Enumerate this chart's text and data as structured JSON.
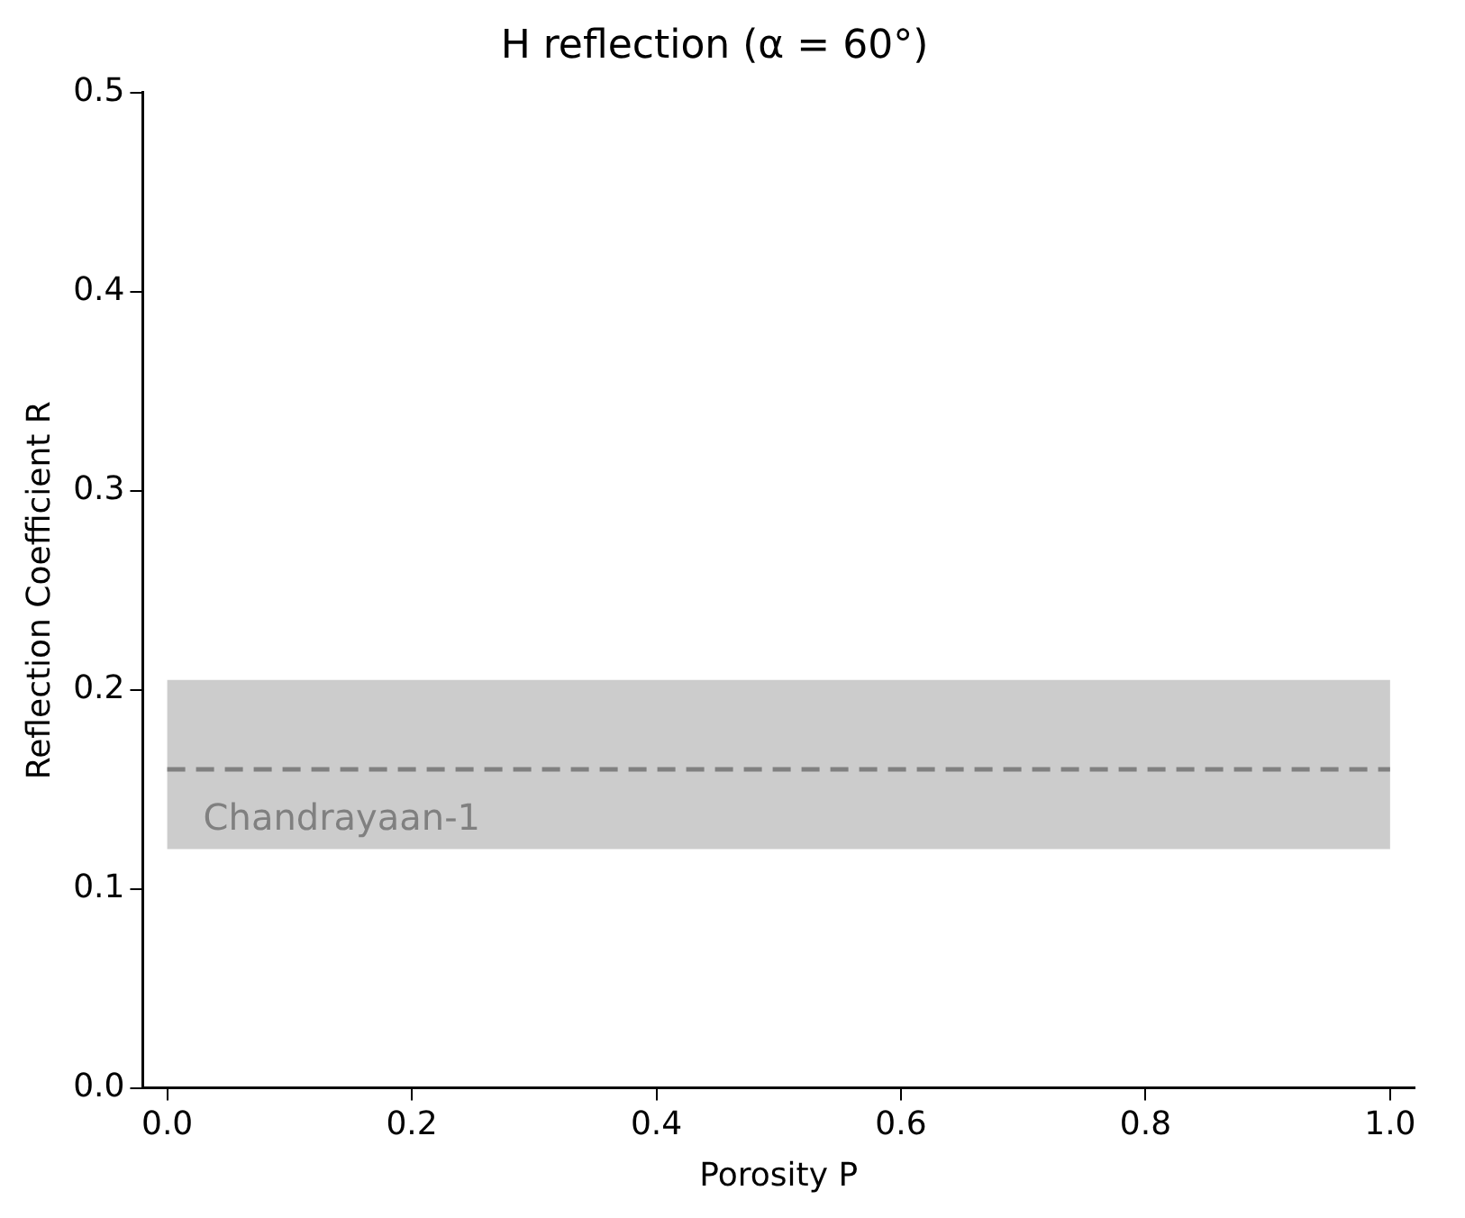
{
  "chart_data": {
    "type": "line",
    "title": "H reflection (α = 60°)",
    "xlabel": "Porosity P",
    "ylabel": "Reflection Coefficient R",
    "xlim": [
      -0.02,
      1.02
    ],
    "xticks": [
      {
        "value": 0,
        "label": "0.0"
      },
      0.2,
      0.4,
      0.6,
      0.8,
      {
        "value": 1,
        "label": "1.0"
      }
    ],
    "ylim": [
      0,
      0.5
    ],
    "yticks": [
      {
        "value": 0,
        "label": "0.0"
      },
      0.1,
      0.2,
      0.3,
      0.4,
      0.5
    ],
    "grid": false,
    "legend": false,
    "bands": [
      {
        "axis": "y",
        "from": 0.12,
        "to": 0.205,
        "label": "Chandrayaan-1",
        "color": "#cccccc"
      }
    ],
    "ref_lines": [
      {
        "axis": "y",
        "value": 0.16,
        "color": "#808080",
        "line_style": "dashed"
      }
    ]
  }
}
